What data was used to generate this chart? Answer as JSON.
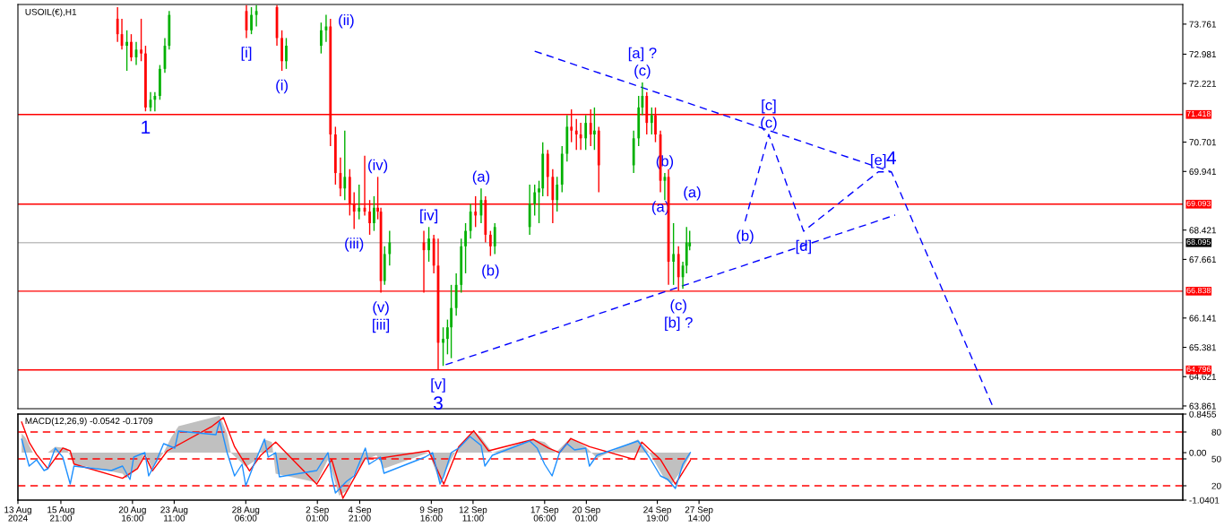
{
  "chart_data": [
    {
      "type": "candlestick",
      "title": "USOIL(€),H1",
      "x": [
        "2024-08-19T16:00",
        "2024-08-19T23:00",
        "2024-08-20T07:00",
        "2024-08-20T14:00",
        "2024-08-20T22:00",
        "2024-08-21T06:00",
        "2024-08-21T13:00",
        "2024-08-21T21:00",
        "2024-08-22T04:00",
        "2024-08-22T12:00",
        "2024-08-22T20:00",
        "2024-08-23T03:00",
        "2024-08-28T07:00",
        "2024-08-28T15:00",
        "2024-08-28T23:00",
        "2024-08-30T08:00",
        "2024-08-30T16:00",
        "2024-08-30T23:00",
        "2024-09-02T07:00",
        "2024-09-02T15:00",
        "2024-09-02T22:00",
        "2024-09-03T06:00",
        "2024-09-03T14:00",
        "2024-09-03T21:00",
        "2024-09-04T05:00",
        "2024-09-04T12:00",
        "2024-09-04T20:00",
        "2024-09-05T05:00",
        "2024-09-05T13:00",
        "2024-09-05T20:00",
        "2024-09-06T02:00",
        "2024-09-06T07:00",
        "2024-09-06T13:00",
        "2024-09-06T21:00",
        "2024-09-09T04:00",
        "2024-09-09T12:00",
        "2024-09-09T20:00",
        "2024-09-10T03:00",
        "2024-09-10T11:00",
        "2024-09-10T18:00",
        "2024-09-11T00:00",
        "2024-09-11T08:00",
        "2024-09-11T16:00",
        "2024-09-11T23:00",
        "2024-09-12T07:00",
        "2024-09-12T15:00",
        "2024-09-13T00:00",
        "2024-09-13T07:00",
        "2024-09-13T15:00",
        "2024-09-13T22:00",
        "2024-09-16T06:00",
        "2024-09-16T14:00",
        "2024-09-16T21:00",
        "2024-09-17T03:00",
        "2024-09-17T11:00",
        "2024-09-17T19:00",
        "2024-09-18T02:00",
        "2024-09-18T10:00",
        "2024-09-18T18:00",
        "2024-09-19T01:00",
        "2024-09-19T09:00",
        "2024-09-19T16:00",
        "2024-09-20T00:00",
        "2024-09-20T08:00",
        "2024-09-20T14:00",
        "2024-09-20T21:00",
        "2024-09-23T05:00",
        "2024-09-23T13:00",
        "2024-09-23T19:00",
        "2024-09-24T02:00",
        "2024-09-24T10:00",
        "2024-09-24T16:00",
        "2024-09-25T00:00",
        "2024-09-25T07:00",
        "2024-09-25T13:00",
        "2024-09-25T21:00",
        "2024-09-26T05:00",
        "2024-09-26T12:00",
        "2024-09-26T18:00",
        "2024-09-26T23:00"
      ],
      "ohlc": [
        [
          73.9,
          74.2,
          73.3,
          73.5
        ],
        [
          73.5,
          73.9,
          73.1,
          73.2
        ],
        [
          73.2,
          73.6,
          72.55,
          73.3
        ],
        [
          73.3,
          73.5,
          72.8,
          72.9
        ],
        [
          72.9,
          73.3,
          72.7,
          73.1
        ],
        [
          73.1,
          73.9,
          72.8,
          73.0
        ],
        [
          73.0,
          73.2,
          71.5,
          71.6
        ],
        [
          71.6,
          72.0,
          71.5,
          71.8
        ],
        [
          71.8,
          72.0,
          71.5,
          71.9
        ],
        [
          71.9,
          72.7,
          71.8,
          72.6
        ],
        [
          72.6,
          73.4,
          72.5,
          73.2
        ],
        [
          73.2,
          74.1,
          73.1,
          74.0
        ],
        [
          74.1,
          74.25,
          73.4,
          73.6
        ],
        [
          73.6,
          74.2,
          73.5,
          74.0
        ],
        [
          74.0,
          74.25,
          73.7,
          74.1
        ],
        [
          74.2,
          74.25,
          73.2,
          73.4
        ],
        [
          73.4,
          73.6,
          72.55,
          72.8
        ],
        [
          72.8,
          73.4,
          72.6,
          73.2
        ],
        [
          73.2,
          73.8,
          73.0,
          73.6
        ],
        [
          73.6,
          74.0,
          73.3,
          73.7
        ],
        [
          73.7,
          73.9,
          70.6,
          70.9
        ],
        [
          70.9,
          71.1,
          69.6,
          69.9
        ],
        [
          69.9,
          70.3,
          69.3,
          69.5
        ],
        [
          69.5,
          71.0,
          69.2,
          69.8
        ],
        [
          69.8,
          70.0,
          68.8,
          69.1
        ],
        [
          69.1,
          69.4,
          68.45,
          68.9
        ],
        [
          68.9,
          69.6,
          68.7,
          69.0
        ],
        [
          69.0,
          70.35,
          68.8,
          68.9
        ],
        [
          68.9,
          69.2,
          68.3,
          68.6
        ],
        [
          68.6,
          69.3,
          68.4,
          69.0
        ],
        [
          69.0,
          69.8,
          68.7,
          68.9
        ],
        [
          68.9,
          69.0,
          66.8,
          67.1
        ],
        [
          67.1,
          68.0,
          67.0,
          67.8
        ],
        [
          67.8,
          68.4,
          67.5,
          68.1
        ],
        [
          68.1,
          68.4,
          66.8,
          67.9
        ],
        [
          67.9,
          68.5,
          67.6,
          68.2
        ],
        [
          68.2,
          68.3,
          67.3,
          67.5
        ],
        [
          67.5,
          68.2,
          64.8,
          65.5
        ],
        [
          65.5,
          65.9,
          64.9,
          65.6
        ],
        [
          65.6,
          66.1,
          65.2,
          65.9
        ],
        [
          65.9,
          67.0,
          65.1,
          66.4
        ],
        [
          66.4,
          67.3,
          66.2,
          67.0
        ],
        [
          67.0,
          68.2,
          66.8,
          68.0
        ],
        [
          68.0,
          68.6,
          67.3,
          68.4
        ],
        [
          68.4,
          69.1,
          68.2,
          68.9
        ],
        [
          68.9,
          69.3,
          68.5,
          68.8
        ],
        [
          68.8,
          69.5,
          68.6,
          69.2
        ],
        [
          69.2,
          69.3,
          68.1,
          68.3
        ],
        [
          68.3,
          68.4,
          67.75,
          68.0
        ],
        [
          68.0,
          68.6,
          67.8,
          68.5
        ],
        [
          68.5,
          69.6,
          68.3,
          69.1
        ],
        [
          69.1,
          69.6,
          68.8,
          69.4
        ],
        [
          69.4,
          69.7,
          68.6,
          69.5
        ],
        [
          69.5,
          70.7,
          69.3,
          70.4
        ],
        [
          70.4,
          70.5,
          69.3,
          69.8
        ],
        [
          69.8,
          70.0,
          68.6,
          69.2
        ],
        [
          69.2,
          69.8,
          68.9,
          69.6
        ],
        [
          69.6,
          70.6,
          69.4,
          70.4
        ],
        [
          70.4,
          71.4,
          70.2,
          71.1
        ],
        [
          71.1,
          71.55,
          70.7,
          71.0
        ],
        [
          71.0,
          71.3,
          70.5,
          70.9
        ],
        [
          70.9,
          71.2,
          70.5,
          70.8
        ],
        [
          70.8,
          71.4,
          70.5,
          71.2
        ],
        [
          71.2,
          71.55,
          70.6,
          70.9
        ],
        [
          70.9,
          71.6,
          70.5,
          71.0
        ],
        [
          71.0,
          71.1,
          69.4,
          70.1
        ],
        [
          70.1,
          71.0,
          69.9,
          70.8
        ],
        [
          70.8,
          71.9,
          70.6,
          71.6
        ],
        [
          71.6,
          72.25,
          71.4,
          71.9
        ],
        [
          71.9,
          72.0,
          70.9,
          71.2
        ],
        [
          71.2,
          71.6,
          70.9,
          71.4
        ],
        [
          71.4,
          71.6,
          70.7,
          70.9
        ],
        [
          70.9,
          71.0,
          69.4,
          69.7
        ],
        [
          69.7,
          69.9,
          69.2,
          69.8
        ],
        [
          69.8,
          70.0,
          67.0,
          67.6
        ],
        [
          67.6,
          68.6,
          67.0,
          67.8
        ],
        [
          67.8,
          68.0,
          66.85,
          67.2
        ],
        [
          67.2,
          67.6,
          66.9,
          67.5
        ],
        [
          67.5,
          68.5,
          67.3,
          68.1
        ],
        [
          68.0,
          68.4,
          67.9,
          68.1
        ]
      ],
      "colors": [
        "#ff0000",
        "#ff0000",
        "#00b000",
        "#ff0000",
        "#00b000",
        "#ff0000",
        "#ff0000",
        "#00b000",
        "#00b000",
        "#00b000",
        "#00b000",
        "#00b000",
        "#ff0000",
        "#00b000",
        "#00b000",
        "#ff0000",
        "#ff0000",
        "#00b000",
        "#00b000",
        "#00b000",
        "#ff0000",
        "#ff0000",
        "#ff0000",
        "#00b000",
        "#ff0000",
        "#ff0000",
        "#00b000",
        "#ff0000",
        "#ff0000",
        "#00b000",
        "#ff0000",
        "#ff0000",
        "#00b000",
        "#00b000",
        "#ff0000",
        "#00b000",
        "#ff0000",
        "#ff0000",
        "#00b000",
        "#00b000",
        "#00b000",
        "#00b000",
        "#00b000",
        "#00b000",
        "#00b000",
        "#ff0000",
        "#00b000",
        "#ff0000",
        "#ff0000",
        "#00b000",
        "#00b000",
        "#00b000",
        "#00b000",
        "#00b000",
        "#ff0000",
        "#ff0000",
        "#00b000",
        "#00b000",
        "#00b000",
        "#ff0000",
        "#ff0000",
        "#ff0000",
        "#00b000",
        "#ff0000",
        "#00b000",
        "#ff0000",
        "#00b000",
        "#00b000",
        "#00b000",
        "#ff0000",
        "#00b000",
        "#ff0000",
        "#ff0000",
        "#00b000",
        "#ff0000",
        "#00b000",
        "#ff0000",
        "#00b000",
        "#00b000",
        "#00b000"
      ],
      "series": [
        {
          "type": "line",
          "color": "#0000ff",
          "line_style": "dashed",
          "x": [
            "2024-09-16T14:00",
            "2024-10-10T11:00"
          ],
          "values": [
            73.06,
            69.93
          ]
        },
        {
          "type": "line",
          "color": "#0000ff",
          "line_style": "dashed",
          "x": [
            "2024-09-10T15:00",
            "2024-10-10T17:00"
          ],
          "values": [
            64.93,
            68.81
          ]
        },
        {
          "type": "line",
          "color": "#0000ff",
          "line_style": "dashed",
          "x": [
            "2024-09-30T16:00",
            "2024-10-02T06:00",
            "2024-10-04T14:00",
            "2024-10-09T14:00",
            "2024-10-10T11:00",
            "2024-10-17T05:00"
          ],
          "values": [
            68.65,
            70.9,
            68.39,
            69.93,
            69.93,
            63.88
          ]
        }
      ],
      "xlim": [
        "2024-08-13T00:00",
        "2024-10-29T23:00"
      ],
      "ylim": [
        63.79,
        74.27
      ],
      "yticks": [
        73.761,
        72.981,
        72.221,
        70.701,
        69.941,
        68.421,
        67.661,
        66.141,
        65.381,
        64.621,
        63.861
      ],
      "tick_labels": "y",
      "ref_lines": [
        {
          "axis": "y",
          "value": 71.418,
          "label": "71.418",
          "color": "#ff0000"
        },
        {
          "axis": "y",
          "value": 69.093,
          "label": "69.093",
          "color": "#ff0000"
        },
        {
          "axis": "y",
          "value": 68.095,
          "label": "68.095",
          "color": "#c0c0c0"
        },
        {
          "axis": "y",
          "value": 66.838,
          "label": "66.838",
          "color": "#ff0000"
        },
        {
          "axis": "y",
          "value": 64.796,
          "label": "64.796",
          "color": "#ff0000"
        }
      ],
      "annotations": [
        {
          "text": "1",
          "x": "2024-08-21T13:00",
          "y": 71.5
        },
        {
          "text": "(i)",
          "x": "2024-08-30T16:00",
          "y": 72.55
        },
        {
          "text": "(ii)",
          "x": "2024-09-02T22:00",
          "y": 73.9
        },
        {
          "text": "(iii)",
          "x": "2024-09-04T12:00",
          "y": 68.45
        },
        {
          "text": "(iv)",
          "x": "2024-09-06T02:00",
          "y": 69.8
        },
        {
          "text": "(v)",
          "x": "2024-09-06T07:00",
          "y": 66.8
        },
        {
          "text": "[iii]",
          "x": "2024-09-06T07:00",
          "y": 66.8
        },
        {
          "text": "[iv]",
          "x": "2024-09-09T12:00",
          "y": 68.5
        },
        {
          "text": "[v]",
          "x": "2024-09-10T03:00",
          "y": 64.8
        },
        {
          "text": "3",
          "x": "2024-09-10T03:00",
          "y": 64.8
        },
        {
          "text": "[i]",
          "x": "2024-08-28T07:00",
          "y": 73.4
        },
        {
          "text": "(a)",
          "x": "2024-09-13T00:00",
          "y": 69.5
        },
        {
          "text": "(b)",
          "x": "2024-09-13T15:00",
          "y": 67.75
        },
        {
          "text": "(c)",
          "x": "2024-09-23T19:00",
          "y": 72.25
        },
        {
          "text": "[a] ?",
          "x": "2024-09-23T19:00",
          "y": 72.25
        },
        {
          "text": "(a)",
          "x": "2024-09-25T00:00",
          "y": 69.4
        },
        {
          "text": "(b)",
          "x": "2024-09-25T07:00",
          "y": 69.9
        },
        {
          "text": "(a)",
          "x": "2024-09-27T03:00",
          "y": 69.093
        },
        {
          "text": "(c)",
          "x": "2024-09-26T05:00",
          "y": 66.85
        },
        {
          "text": "[b] ?",
          "x": "2024-09-26T05:00",
          "y": 66.85
        },
        {
          "text": "(b)",
          "x": "2024-09-30T16:00",
          "y": 68.65
        },
        {
          "text": "(c)",
          "x": "2024-10-02T06:00",
          "y": 70.9
        },
        {
          "text": "[c]",
          "x": "2024-10-02T06:00",
          "y": 70.9
        },
        {
          "text": "[d]",
          "x": "2024-10-04T14:00",
          "y": 68.39
        },
        {
          "text": "[e]",
          "x": "2024-10-09T14:00",
          "y": 69.93
        },
        {
          "text": "4",
          "x": "2024-10-10T11:00",
          "y": 69.93
        }
      ]
    },
    {
      "type": "line",
      "title": "MACD(12,26,9) -0.0542 -0.1709",
      "series": [
        {
          "type": "area",
          "color": "#c0c0c0",
          "x": [
            "2024-08-13T06:00",
            "2024-08-13T12:00",
            "2024-08-14T00:00",
            "2024-08-15T00:00",
            "2024-08-15T12:00",
            "2024-08-16T06:00",
            "2024-08-16T18:00",
            "2024-08-20T00:00",
            "2024-08-20T06:00",
            "2024-08-21T00:00",
            "2024-08-21T12:00",
            "2024-08-22T00:00",
            "2024-08-22T18:00",
            "2024-08-23T06:00",
            "2024-08-23T18:00",
            "2024-08-26T12:00",
            "2024-08-27T00:00",
            "2024-08-27T06:00",
            "2024-08-28T06:00",
            "2024-08-29T00:00",
            "2024-08-29T12:00",
            "2024-08-30T00:00",
            "2024-08-30T06:00",
            "2024-09-02T00:00",
            "2024-09-02T18:00",
            "2024-09-03T12:00",
            "2024-09-04T00:00",
            "2024-09-04T12:00",
            "2024-09-05T06:00",
            "2024-09-06T00:00",
            "2024-09-06T12:00",
            "2024-09-09T12:00",
            "2024-09-10T06:00",
            "2024-09-11T00:00",
            "2024-09-11T12:00",
            "2024-09-12T12:00",
            "2024-09-13T00:00",
            "2024-09-13T18:00",
            "2024-09-16T12:00",
            "2024-09-17T06:00",
            "2024-09-18T00:00",
            "2024-09-19T00:00",
            "2024-09-20T00:00",
            "2024-09-20T18:00",
            "2024-09-23T12:00",
            "2024-09-24T06:00",
            "2024-09-25T06:00",
            "2024-09-25T18:00",
            "2024-09-26T12:00",
            "2024-09-27T00:00"
          ],
          "values": [
            0.42,
            0.33,
            0,
            0,
            0.13,
            0.1,
            -0.25,
            -0.46,
            -0.56,
            -0.35,
            0,
            -0.35,
            0,
            0.33,
            0.58,
            0.81,
            0.42,
            0,
            -0.31,
            -0.15,
            0.29,
            0.23,
            -0.46,
            -0.65,
            -0.15,
            -0.94,
            -0.84,
            -0.46,
            -0.15,
            -0.06,
            -0.35,
            0,
            -0.65,
            -0.15,
            0.13,
            0.48,
            0.33,
            0,
            0.29,
            0.23,
            0,
            0.33,
            0.13,
            -0.12,
            0.29,
            0,
            -0.56,
            -0.69,
            -0.35,
            -0.05
          ]
        },
        {
          "type": "line",
          "color": "#1e90ff",
          "axis": "y2",
          "x": [
            "2024-08-13T06:00",
            "2024-08-13T12:00",
            "2024-08-13T18:00",
            "2024-08-14T06:00",
            "2024-08-14T18:00",
            "2024-08-15T00:00",
            "2024-08-15T12:00",
            "2024-08-16T00:00",
            "2024-08-16T12:00",
            "2024-08-16T18:00",
            "2024-08-19T06:00",
            "2024-08-20T00:00",
            "2024-08-20T12:00",
            "2024-08-20T18:00",
            "2024-08-21T12:00",
            "2024-08-21T18:00",
            "2024-08-22T06:00",
            "2024-08-22T18:00",
            "2024-08-23T12:00",
            "2024-08-23T18:00",
            "2024-08-26T06:00",
            "2024-08-26T12:00",
            "2024-08-27T00:00",
            "2024-08-27T12:00",
            "2024-08-28T00:00",
            "2024-08-28T06:00",
            "2024-08-28T18:00",
            "2024-08-29T12:00",
            "2024-08-29T18:00",
            "2024-08-30T06:00",
            "2024-08-30T12:00",
            "2024-09-02T00:00",
            "2024-09-02T18:00",
            "2024-09-03T00:00",
            "2024-09-03T06:00",
            "2024-09-04T00:00",
            "2024-09-04T12:00",
            "2024-09-05T06:00",
            "2024-09-05T12:00",
            "2024-09-06T06:00",
            "2024-09-06T12:00",
            "2024-09-09T06:00",
            "2024-09-09T18:00",
            "2024-09-10T06:00",
            "2024-09-10T12:00",
            "2024-09-11T00:00",
            "2024-09-11T12:00",
            "2024-09-12T06:00",
            "2024-09-13T00:00",
            "2024-09-13T06:00",
            "2024-09-13T18:00",
            "2024-09-16T06:00",
            "2024-09-16T18:00",
            "2024-09-17T06:00",
            "2024-09-17T18:00",
            "2024-09-18T06:00",
            "2024-09-18T18:00",
            "2024-09-19T06:00",
            "2024-09-20T00:00",
            "2024-09-20T06:00",
            "2024-09-20T18:00",
            "2024-09-23T12:00",
            "2024-09-24T06:00",
            "2024-09-25T00:00",
            "2024-09-25T12:00",
            "2024-09-26T00:00",
            "2024-09-26T12:00",
            "2024-09-27T00:00"
          ],
          "values": [
            72,
            57,
            42,
            49,
            37,
            39,
            62,
            52,
            22,
            42,
            37,
            42,
            27,
            52,
            57,
            31,
            47,
            67,
            62,
            81,
            77,
            92,
            57,
            31,
            44,
            20,
            42,
            72,
            52,
            57,
            30,
            37,
            57,
            30,
            12,
            25,
            31,
            62,
            44,
            52,
            34,
            52,
            57,
            22,
            31,
            57,
            62,
            75,
            65,
            42,
            54,
            70,
            62,
            44,
            31,
            57,
            67,
            60,
            62,
            42,
            54,
            70,
            52,
            31,
            27,
            17,
            44,
            57
          ]
        },
        {
          "type": "line",
          "color": "#ff0000",
          "x": [
            "2024-08-13T06:00",
            "2024-08-13T18:00",
            "2024-08-14T06:00",
            "2024-08-15T00:00",
            "2024-08-16T00:00",
            "2024-08-16T12:00",
            "2024-08-16T18:00",
            "2024-08-20T00:00",
            "2024-08-21T00:00",
            "2024-08-21T12:00",
            "2024-08-22T00:00",
            "2024-08-23T00:00",
            "2024-08-26T00:00",
            "2024-08-26T18:00",
            "2024-08-27T12:00",
            "2024-08-28T12:00",
            "2024-08-29T06:00",
            "2024-08-30T06:00",
            "2024-09-02T00:00",
            "2024-09-03T00:00",
            "2024-09-03T18:00",
            "2024-09-04T12:00",
            "2024-09-05T06:00",
            "2024-09-06T06:00",
            "2024-09-09T12:00",
            "2024-09-10T12:00",
            "2024-09-11T12:00",
            "2024-09-12T12:00",
            "2024-09-13T12:00",
            "2024-09-16T12:00",
            "2024-09-17T12:00",
            "2024-09-18T06:00",
            "2024-09-19T00:00",
            "2024-09-20T06:00",
            "2024-09-23T06:00",
            "2024-09-23T18:00",
            "2024-09-25T00:00",
            "2024-09-26T00:00",
            "2024-09-27T00:00"
          ],
          "values": [
            0.67,
            0.23,
            -0.04,
            -0.35,
            0.1,
            0.04,
            -0.25,
            -0.56,
            -0.35,
            -0.06,
            -0.4,
            0.04,
            0.58,
            0.77,
            0.13,
            -0.4,
            -0.06,
            0.23,
            -0.69,
            -0.15,
            -1.0,
            -0.56,
            -0.12,
            -0.12,
            0.04,
            -0.69,
            0.13,
            0.48,
            0.04,
            0.29,
            0.1,
            0,
            0.31,
            0.13,
            -0.15,
            0.23,
            -0.15,
            -0.69,
            -0.17
          ]
        }
      ],
      "xlim": [
        "2024-08-13T00:00",
        "2024-10-29T23:00"
      ],
      "xticks": [
        {
          "value": "2024-08-13T00:00",
          "label": "13 Aug 2024"
        },
        {
          "value": "2024-08-15T21:00",
          "label": "15 Aug 21:00"
        },
        {
          "value": "2024-08-20T16:00",
          "label": "20 Aug 16:00"
        },
        {
          "value": "2024-08-23T11:00",
          "label": "23 Aug 11:00"
        },
        {
          "value": "2024-08-28T06:00",
          "label": "28 Aug 06:00"
        },
        {
          "value": "2024-09-02T01:00",
          "label": "2 Sep 01:00"
        },
        {
          "value": "2024-09-04T21:00",
          "label": "4 Sep 21:00"
        },
        {
          "value": "2024-09-09T16:00",
          "label": "9 Sep 16:00"
        },
        {
          "value": "2024-09-12T11:00",
          "label": "12 Sep 11:00"
        },
        {
          "value": "2024-09-17T06:00",
          "label": "17 Sep 06:00"
        },
        {
          "value": "2024-09-20T01:00",
          "label": "20 Sep 01:00"
        },
        {
          "value": "2024-09-24T19:00",
          "label": "24 Sep 19:00"
        },
        {
          "value": "2024-09-27T14:00",
          "label": "27 Sep 14:00"
        }
      ],
      "ylim": [
        -1.0401,
        0.8455
      ],
      "yticks": [
        0.8455,
        {
          "value": 0,
          "label": "0.00"
        },
        -1.0401
      ],
      "y2lim": [
        4,
        100
      ],
      "y2ticks": [
        80,
        50,
        20
      ],
      "ref_lines": [
        {
          "axis": "y2",
          "value": 80,
          "color": "#ff0000",
          "line_style": "dashed"
        },
        {
          "axis": "y2",
          "value": 50,
          "color": "#ff0000",
          "line_style": "dashed"
        },
        {
          "axis": "y2",
          "value": 20,
          "color": "#ff0000",
          "line_style": "dashed"
        }
      ]
    }
  ]
}
